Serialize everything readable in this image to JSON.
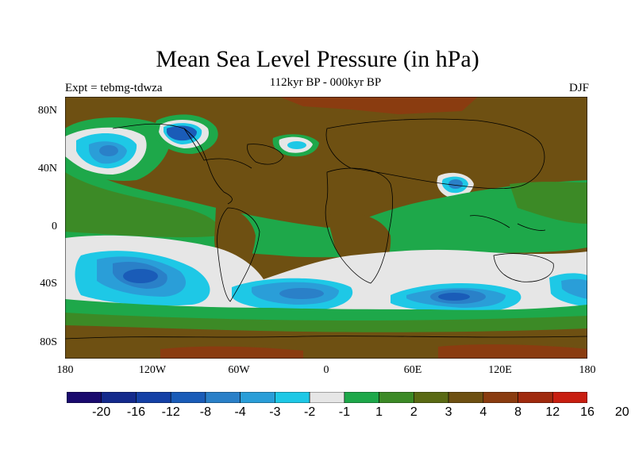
{
  "title": "Mean Sea Level Pressure (in hPa)",
  "subtitle": "112kyr BP - 000kyr BP",
  "experiment": "Expt = tebmg-tdwza",
  "season": "DJF",
  "axes": {
    "lat_labels": [
      "80N",
      "40N",
      "0",
      "40S",
      "80S"
    ],
    "lon_labels": [
      "180",
      "120W",
      "60W",
      "0",
      "60E",
      "120E",
      "180"
    ]
  },
  "colorbar": {
    "colors": [
      "#1a0a6e",
      "#142a8c",
      "#1440a6",
      "#1a5cb8",
      "#2a80c8",
      "#2a9ed8",
      "#1ec8e6",
      "#e6e6e6",
      "#1ea84a",
      "#3c8a26",
      "#5a6a14",
      "#6e5012",
      "#8a3c10",
      "#a02a0e",
      "#c81e10"
    ],
    "labels": [
      "-20",
      "-16",
      "-12",
      "-8",
      "-4",
      "-3",
      "-2",
      "-1",
      "1",
      "2",
      "3",
      "4",
      "8",
      "12",
      "16",
      "20"
    ]
  },
  "palette": {
    "land_brown": "#6e5012",
    "mid_green": "#3c8a26",
    "green": "#1ea84a",
    "white": "#e6e6e6",
    "cyan": "#1ec8e6",
    "light_blue": "#2a9ed8",
    "blue": "#2a80c8",
    "dark_blue": "#1a5cb8",
    "red_brown": "#8a3c10"
  }
}
